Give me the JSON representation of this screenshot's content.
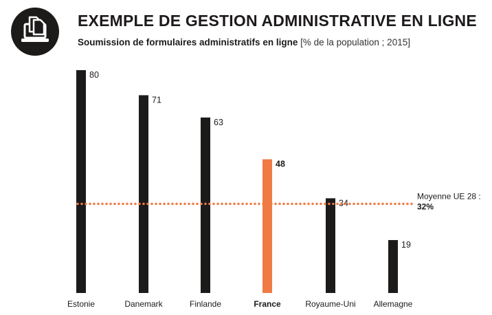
{
  "header": {
    "title": "EXEMPLE DE GESTION ADMINISTRATIVE EN LIGNE",
    "subtitle_bold": "Soumission de formulaires administratifs en ligne",
    "subtitle_light": "[% de la population ; 2015]",
    "icon": "computer-documents-icon"
  },
  "colors": {
    "bar": "#1d1a1a",
    "highlight": "#f07a43",
    "average_line": "#f07a43"
  },
  "chart_data": {
    "type": "bar",
    "title": "EXEMPLE DE GESTION ADMINISTRATIVE EN LIGNE",
    "subtitle": "Soumission de formulaires administratifs en ligne [% de la population ; 2015]",
    "categories": [
      "Estonie",
      "Danemark",
      "Finlande",
      "France",
      "Royaume-Uni",
      "Allemagne"
    ],
    "values": [
      80,
      71,
      63,
      48,
      34,
      19
    ],
    "value_labels": [
      "80",
      "71",
      "63",
      "48",
      "34",
      "19"
    ],
    "highlight": "France",
    "unit": "% de la population",
    "year": 2015,
    "ylim": [
      0,
      80
    ],
    "grid": false,
    "reference_line": {
      "value": 32,
      "label_line1": "Moyenne UE 28 :",
      "label_line2": "32%"
    }
  }
}
